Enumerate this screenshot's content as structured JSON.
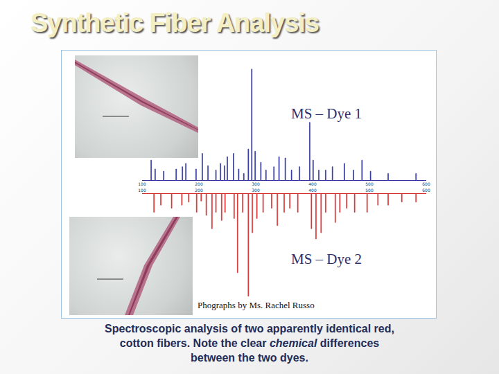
{
  "title": "Synthetic Fiber Analysis",
  "credit": "Phographs by Ms. Rachel Russo",
  "caption": [
    [
      {
        "text": "Spectroscopic analysis of two apparently identical red,"
      }
    ],
    [
      {
        "text": "cotton fibers.  Note the clear "
      },
      {
        "text": "chemical",
        "italic": true
      },
      {
        "text": " differences"
      }
    ],
    [
      {
        "text": "between the two dyes."
      }
    ]
  ],
  "chart_data": [
    {
      "type": "bar",
      "title": "MS – Dye 1",
      "color": "#2a2f9a",
      "x": [
        116,
        123,
        138,
        160,
        171,
        177,
        195,
        206,
        216,
        230,
        238,
        245,
        250,
        261,
        270,
        279,
        287,
        293,
        299,
        309,
        318,
        332,
        341,
        352,
        363,
        377,
        395,
        401,
        411,
        423,
        435,
        456,
        472,
        487,
        502,
        533,
        582
      ],
      "values": [
        18,
        10,
        8,
        10,
        12,
        15,
        10,
        24,
        13,
        9,
        15,
        13,
        21,
        24,
        10,
        6,
        28,
        100,
        26,
        16,
        9,
        12,
        21,
        20,
        9,
        12,
        52,
        18,
        9,
        9,
        12,
        15,
        9,
        18,
        8,
        6,
        6
      ],
      "xlim": [
        100,
        600
      ],
      "xticks": [
        100,
        200,
        300,
        400,
        500,
        600
      ],
      "ylim": [
        0,
        103
      ],
      "tick_labels": "x",
      "grid": false
    },
    {
      "type": "bar",
      "title": "MS – Dye 2",
      "color": "#d42a2a",
      "x": [
        121,
        133,
        152,
        170,
        182,
        196,
        204,
        213,
        223,
        230,
        240,
        246,
        262,
        268,
        277,
        287,
        294,
        302,
        313,
        328,
        338,
        350,
        360,
        374,
        398,
        406,
        415,
        423,
        440,
        448,
        460,
        474,
        496,
        515,
        533,
        557,
        582
      ],
      "values": [
        18,
        11,
        14,
        11,
        8,
        18,
        7,
        21,
        34,
        18,
        26,
        18,
        24,
        77,
        18,
        100,
        38,
        24,
        18,
        14,
        31,
        18,
        14,
        18,
        34,
        44,
        38,
        18,
        28,
        18,
        14,
        18,
        18,
        11,
        11,
        8,
        8
      ],
      "xlim": [
        100,
        600
      ],
      "xticks": [
        100,
        200,
        300,
        400,
        500,
        600
      ],
      "ylim": [
        103,
        0
      ],
      "tick_labels": "x",
      "grid": false
    }
  ]
}
